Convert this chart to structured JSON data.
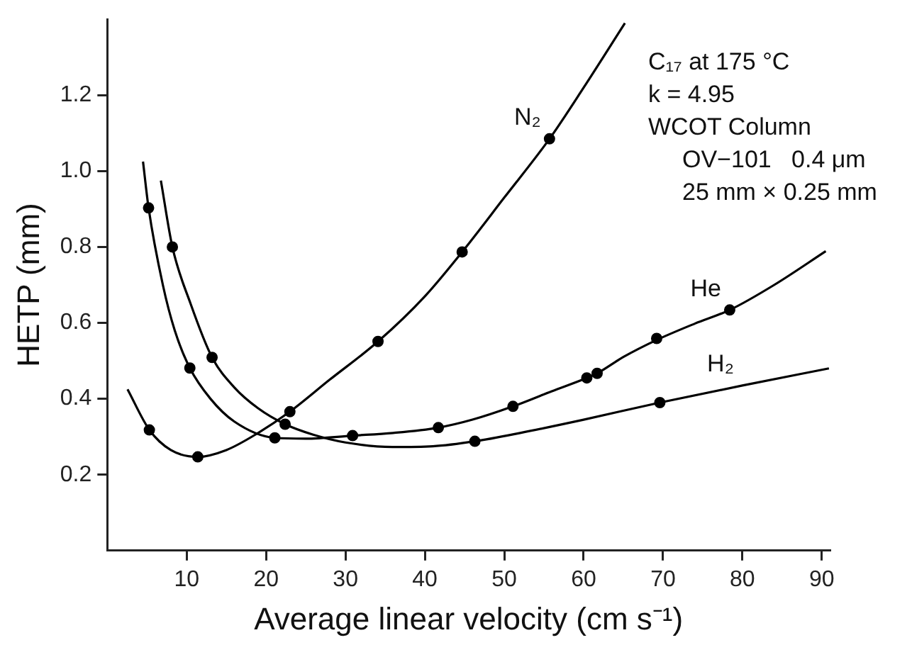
{
  "chart_data": {
    "type": "line",
    "xlabel": "Average linear velocity (cm s⁻¹)",
    "ylabel": "HETP (mm)",
    "xlim": [
      0,
      91
    ],
    "xticks": [
      10,
      20,
      30,
      40,
      50,
      60,
      70,
      80,
      90
    ],
    "ylim": [
      0,
      1.4
    ],
    "yticks": [
      0.2,
      0.4,
      0.6,
      0.8,
      {
        "value": 1,
        "label": "1.0"
      },
      1.2
    ],
    "grid": false,
    "series": [
      {
        "name": "N₂",
        "color": "#000000",
        "marker": "none",
        "x": [
          2.55,
          5.3,
          8,
          11.4,
          15,
          19,
          23,
          28,
          34.1,
          40,
          44.7,
          50,
          55.7,
          60,
          65.2
        ],
        "values": [
          0.425,
          0.318,
          0.265,
          0.247,
          0.265,
          0.31,
          0.366,
          0.45,
          0.551,
          0.67,
          0.787,
          0.93,
          1.085,
          1.22,
          1.39
        ]
      },
      {
        "type": "scatter",
        "color": "#000000",
        "marker": "circle",
        "x": [
          5.3,
          11.4,
          23,
          34.1,
          44.7,
          55.7
        ],
        "values": [
          0.318,
          0.247,
          0.366,
          0.551,
          0.787,
          1.085
        ]
      },
      {
        "name": "He",
        "color": "#000000",
        "marker": "none",
        "x": [
          4.5,
          5.2,
          7,
          8.5,
          10.4,
          13,
          16,
          21.1,
          25,
          30.9,
          36,
          41.7,
          46,
          51.1,
          56,
          60.4,
          61.7,
          65,
          69.2,
          74,
          78.4,
          84,
          90.5
        ],
        "values": [
          1.025,
          0.903,
          0.7,
          0.58,
          0.481,
          0.4,
          0.34,
          0.297,
          0.295,
          0.303,
          0.31,
          0.324,
          0.345,
          0.38,
          0.42,
          0.455,
          0.467,
          0.51,
          0.555,
          0.598,
          0.634,
          0.7,
          0.789
        ]
      },
      {
        "type": "scatter",
        "color": "#000000",
        "marker": "circle",
        "x": [
          5.2,
          10.4,
          21.1,
          30.9,
          41.7,
          51.1,
          60.4,
          61.7,
          69.2,
          78.4
        ],
        "values": [
          0.903,
          0.481,
          0.297,
          0.303,
          0.324,
          0.38,
          0.455,
          0.467,
          0.559,
          0.634
        ]
      },
      {
        "name": "H₂",
        "color": "#000000",
        "marker": "none",
        "x": [
          6.75,
          8.2,
          10.5,
          13.2,
          16,
          19,
          22.4,
          26,
          30,
          35.9,
          41,
          46.3,
          52,
          60,
          69.6,
          80,
          90.9
        ],
        "values": [
          0.975,
          0.8,
          0.65,
          0.509,
          0.43,
          0.375,
          0.333,
          0.305,
          0.285,
          0.273,
          0.275,
          0.288,
          0.31,
          0.345,
          0.39,
          0.435,
          0.48
        ]
      },
      {
        "type": "scatter",
        "color": "#000000",
        "marker": "circle",
        "x": [
          8.2,
          13.2,
          22.4,
          46.3,
          69.6
        ],
        "values": [
          0.8,
          0.509,
          0.333,
          0.288,
          0.39
        ]
      }
    ],
    "annotations": [
      "C₁₇ at 175 °C",
      "k = 4.95",
      "WCOT Column",
      "OV−101   0.4 μm",
      "25 mm × 0.25 mm"
    ]
  }
}
